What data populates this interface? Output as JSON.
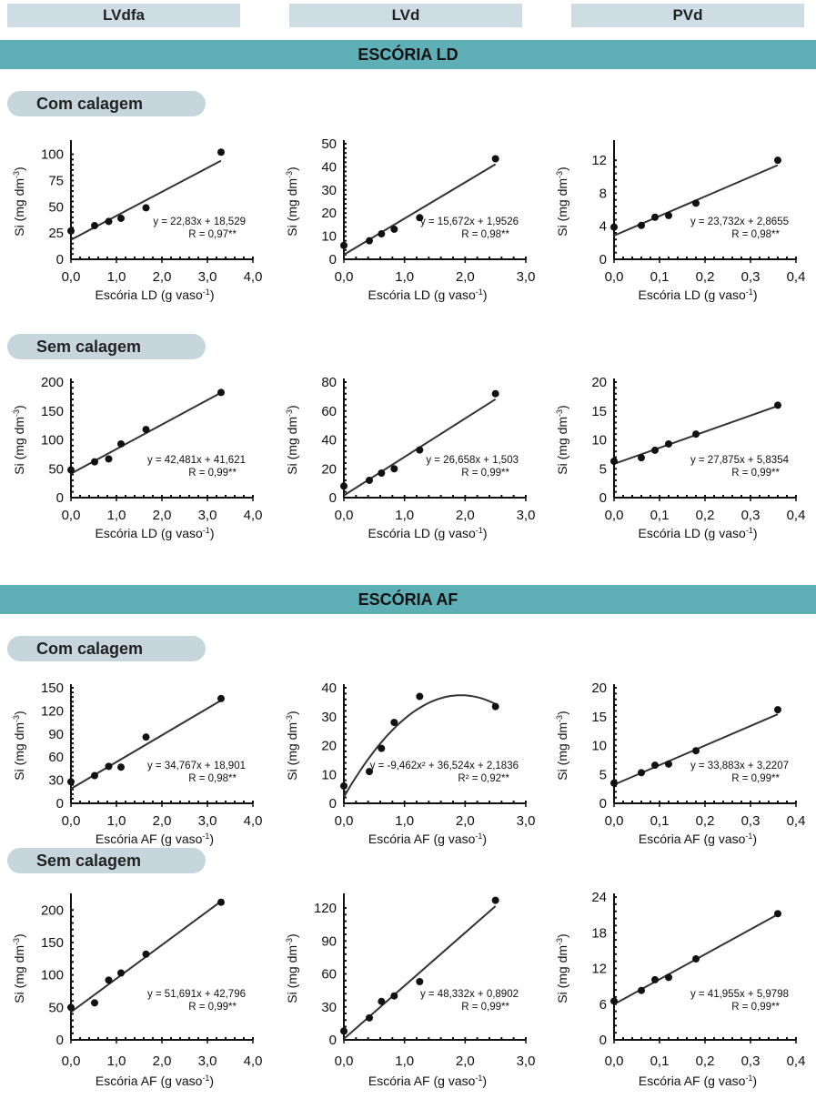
{
  "headers": {
    "col1": "LVdfa",
    "col2": "LVd",
    "col3": "PVd"
  },
  "sections": {
    "ld": "ESCÓRIA LD",
    "af": "ESCÓRIA AF"
  },
  "pills": {
    "ld_com": "Com calagem",
    "ld_sem": "Sem calagem",
    "af_com": "Com calagem",
    "af_sem": "Sem calagem"
  },
  "chart_data": [
    {
      "id": "ld_com_lvdfa",
      "type": "scatter",
      "xlabel": "Escória LD (g vaso-1)",
      "ylabel": "Si (mg dm-3)",
      "xlim": [
        0,
        4
      ],
      "ylim": [
        0,
        110
      ],
      "xticks": [
        0,
        1,
        2,
        3,
        4
      ],
      "yticks": [
        0,
        25,
        50,
        75,
        100
      ],
      "x": [
        0,
        0.52,
        0.83,
        1.1,
        1.65,
        3.3
      ],
      "y": [
        27,
        32,
        36,
        39,
        49,
        102
      ],
      "fit": {
        "kind": "linear",
        "coef": [
          18.529,
          22.83
        ],
        "xrange": [
          0,
          3.3
        ]
      },
      "eq": "y = 22,83x + 18,529",
      "r": "R = 0,97**"
    },
    {
      "id": "ld_com_lvd",
      "type": "scatter",
      "xlabel": "Escória LD (g vaso-1)",
      "ylabel": "Si (mg dm-3)",
      "xlim": [
        0,
        3
      ],
      "ylim": [
        0,
        50
      ],
      "xticks": [
        0,
        1,
        2,
        3
      ],
      "yticks": [
        0,
        10,
        20,
        30,
        40,
        50
      ],
      "x": [
        0,
        0.42,
        0.62,
        0.83,
        1.25,
        2.5
      ],
      "y": [
        6,
        8,
        11,
        13,
        18,
        43.5
      ],
      "fit": {
        "kind": "linear",
        "coef": [
          1.9526,
          15.672
        ],
        "xrange": [
          0,
          2.5
        ]
      },
      "eq": "y = 15,672x + 1,9526",
      "r": "R = 0,98**"
    },
    {
      "id": "ld_com_pvd",
      "type": "scatter",
      "xlabel": "Escória LD (g vaso-1)",
      "ylabel": "Si (mg dm-3)",
      "xlim": [
        0,
        0.4
      ],
      "ylim": [
        0,
        14
      ],
      "xticks": [
        0,
        0.1,
        0.2,
        0.3,
        0.4
      ],
      "yticks": [
        0,
        4,
        8,
        12
      ],
      "x": [
        0,
        0.06,
        0.09,
        0.12,
        0.18,
        0.36
      ],
      "y": [
        3.9,
        4.1,
        5.1,
        5.3,
        6.8,
        12
      ],
      "fit": {
        "kind": "linear",
        "coef": [
          2.8655,
          23.732
        ],
        "xrange": [
          0,
          0.36
        ]
      },
      "eq": "y = 23,732x + 2,8655",
      "r": "R = 0,98**"
    },
    {
      "id": "ld_sem_lvdfa",
      "type": "scatter",
      "xlabel": "Escória LD (g vaso-1)",
      "ylabel": "Si (mg dm-3)",
      "xlim": [
        0,
        4
      ],
      "ylim": [
        0,
        200
      ],
      "xticks": [
        0,
        1,
        2,
        3,
        4
      ],
      "yticks": [
        0,
        50,
        100,
        150,
        200
      ],
      "x": [
        0,
        0.52,
        0.83,
        1.1,
        1.65,
        3.3
      ],
      "y": [
        48,
        62,
        67,
        93,
        118,
        182
      ],
      "fit": {
        "kind": "linear",
        "coef": [
          41.621,
          42.481
        ],
        "xrange": [
          0,
          3.3
        ]
      },
      "eq": "y = 42,481x + 41,621",
      "r": "R = 0,99**"
    },
    {
      "id": "ld_sem_lvd",
      "type": "scatter",
      "xlabel": "Escória LD (g vaso-1)",
      "ylabel": "Si (mg dm-3)",
      "xlim": [
        0,
        3
      ],
      "ylim": [
        0,
        80
      ],
      "xticks": [
        0,
        1,
        2,
        3
      ],
      "yticks": [
        0,
        20,
        40,
        60,
        80
      ],
      "x": [
        0,
        0.42,
        0.62,
        0.83,
        1.25,
        2.5
      ],
      "y": [
        8,
        12,
        17,
        20,
        33,
        72
      ],
      "fit": {
        "kind": "linear",
        "coef": [
          1.503,
          26.658
        ],
        "xrange": [
          0,
          2.5
        ]
      },
      "eq": "y = 26,658x + 1,503",
      "r": "R = 0,99**"
    },
    {
      "id": "ld_sem_pvd",
      "type": "scatter",
      "xlabel": "Escória LD (g vaso-1)",
      "ylabel": "Si (mg dm-3)",
      "xlim": [
        0,
        0.4
      ],
      "ylim": [
        0,
        20
      ],
      "xticks": [
        0,
        0.1,
        0.2,
        0.3,
        0.4
      ],
      "yticks": [
        0,
        5,
        10,
        15,
        20
      ],
      "x": [
        0,
        0.06,
        0.09,
        0.12,
        0.18,
        0.36
      ],
      "y": [
        6.3,
        6.9,
        8.2,
        9.3,
        11,
        16
      ],
      "fit": {
        "kind": "linear",
        "coef": [
          5.8354,
          27.875
        ],
        "xrange": [
          0,
          0.36
        ]
      },
      "eq": "y = 27,875x + 5,8354",
      "r": "R = 0,99**"
    },
    {
      "id": "af_com_lvdfa",
      "type": "scatter",
      "xlabel": "Escória AF (g vaso-1)",
      "ylabel": "Si (mg dm-3)",
      "xlim": [
        0,
        4
      ],
      "ylim": [
        0,
        150
      ],
      "xticks": [
        0,
        1,
        2,
        3,
        4
      ],
      "yticks": [
        0,
        30,
        60,
        90,
        120,
        150
      ],
      "x": [
        0,
        0.52,
        0.83,
        1.1,
        1.65,
        3.3
      ],
      "y": [
        28,
        36,
        48,
        47,
        86,
        136
      ],
      "fit": {
        "kind": "linear",
        "coef": [
          18.901,
          34.767
        ],
        "xrange": [
          0,
          3.3
        ]
      },
      "eq": "y = 34,767x + 18,901",
      "r": "R = 0,98**"
    },
    {
      "id": "af_com_lvd",
      "type": "scatter",
      "xlabel": "Escória AF (g vaso-1)",
      "ylabel": "Si (mg dm-3)",
      "xlim": [
        0,
        3
      ],
      "ylim": [
        0,
        40
      ],
      "xticks": [
        0,
        1,
        2,
        3
      ],
      "yticks": [
        0,
        10,
        20,
        30,
        40
      ],
      "x": [
        0,
        0.42,
        0.62,
        0.83,
        1.25,
        2.5
      ],
      "y": [
        6,
        11,
        19,
        28,
        37,
        33.5
      ],
      "fit": {
        "kind": "quadratic",
        "coef": [
          2.1836,
          36.524,
          -9.462
        ],
        "xrange": [
          0,
          2.5
        ]
      },
      "eq": "y = -9,462x² + 36,524x + 2,1836",
      "r": "R² = 0,92**"
    },
    {
      "id": "af_com_pvd",
      "type": "scatter",
      "xlabel": "Escória AF (g vaso-1)",
      "ylabel": "Si (mg dm-3)",
      "xlim": [
        0,
        0.4
      ],
      "ylim": [
        0,
        20
      ],
      "xticks": [
        0,
        0.1,
        0.2,
        0.3,
        0.4
      ],
      "yticks": [
        0,
        5,
        10,
        15,
        20
      ],
      "x": [
        0,
        0.06,
        0.09,
        0.12,
        0.18,
        0.36
      ],
      "y": [
        3.5,
        5.3,
        6.6,
        6.8,
        9.1,
        16.2
      ],
      "fit": {
        "kind": "linear",
        "coef": [
          3.2207,
          33.883
        ],
        "xrange": [
          0,
          0.36
        ]
      },
      "eq": "y = 33,883x + 3,2207",
      "r": "R = 0,99**"
    },
    {
      "id": "af_sem_lvdfa",
      "type": "scatter",
      "xlabel": "Escória AF (g vaso-1)",
      "ylabel": "Si (mg dm-3)",
      "xlim": [
        0,
        4
      ],
      "ylim": [
        0,
        220
      ],
      "xticks": [
        0,
        1,
        2,
        3,
        4
      ],
      "yticks": [
        0,
        50,
        100,
        150,
        200
      ],
      "x": [
        0,
        0.52,
        0.83,
        1.1,
        1.65,
        3.3
      ],
      "y": [
        50,
        57,
        92,
        103,
        132,
        212
      ],
      "fit": {
        "kind": "linear",
        "coef": [
          42.796,
          51.691
        ],
        "xrange": [
          0,
          3.3
        ]
      },
      "eq": "y = 51,691x + 42,796",
      "r": "R = 0,99**"
    },
    {
      "id": "af_sem_lvd",
      "type": "scatter",
      "xlabel": "Escória AF (g vaso-1)",
      "ylabel": "Si (mg dm-3)",
      "xlim": [
        0,
        3
      ],
      "ylim": [
        0,
        130
      ],
      "xticks": [
        0,
        1,
        2,
        3
      ],
      "yticks": [
        0,
        30,
        60,
        90,
        120
      ],
      "x": [
        0,
        0.42,
        0.62,
        0.83,
        1.25,
        2.5
      ],
      "y": [
        8,
        20,
        35,
        40,
        53,
        127
      ],
      "fit": {
        "kind": "linear",
        "coef": [
          0.8902,
          48.332
        ],
        "xrange": [
          0,
          2.5
        ]
      },
      "eq": "y = 48,332x + 0,8902",
      "r": "R = 0,99**"
    },
    {
      "id": "af_sem_pvd",
      "type": "scatter",
      "xlabel": "Escória AF (g vaso-1)",
      "ylabel": "Si (mg dm-3)",
      "xlim": [
        0,
        0.4
      ],
      "ylim": [
        0,
        24
      ],
      "xticks": [
        0,
        0.1,
        0.2,
        0.3,
        0.4
      ],
      "yticks": [
        0,
        6,
        12,
        18,
        24
      ],
      "x": [
        0,
        0.06,
        0.09,
        0.12,
        0.18,
        0.36
      ],
      "y": [
        6.5,
        8.3,
        10.1,
        10.5,
        13.6,
        21.2
      ],
      "fit": {
        "kind": "linear",
        "coef": [
          5.9798,
          41.955
        ],
        "xrange": [
          0,
          0.36
        ]
      },
      "eq": "y = 41,955x + 5,9798",
      "r": "R = 0,99**"
    }
  ]
}
